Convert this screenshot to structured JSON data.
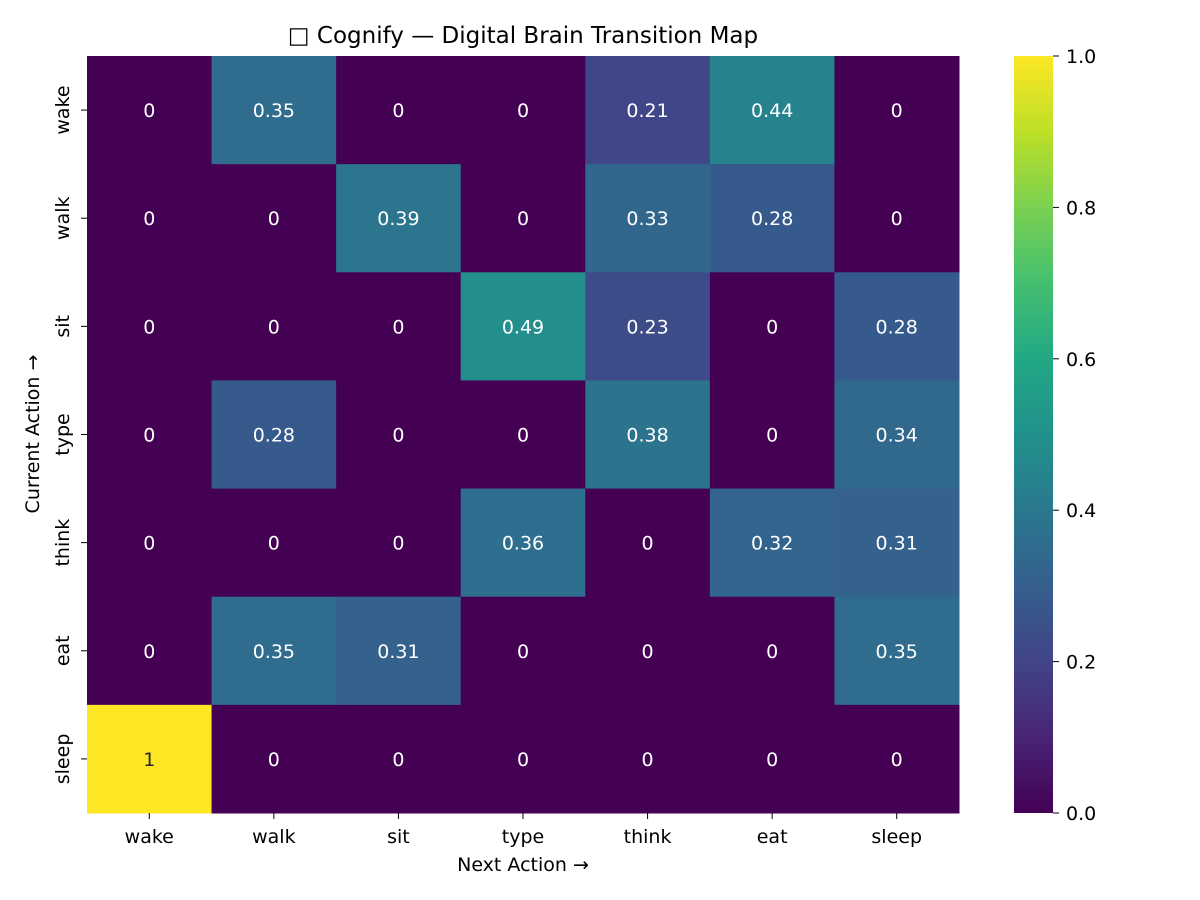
{
  "chart_data": {
    "type": "heatmap",
    "title": "□ Cognify — Digital Brain Transition Map",
    "xlabel": "Next Action →",
    "ylabel": "Current Action →",
    "x_categories": [
      "wake",
      "walk",
      "sit",
      "type",
      "think",
      "eat",
      "sleep"
    ],
    "y_categories": [
      "wake",
      "walk",
      "sit",
      "type",
      "think",
      "eat",
      "sleep"
    ],
    "values": [
      [
        0,
        0.35,
        0,
        0,
        0.21,
        0.44,
        0
      ],
      [
        0,
        0,
        0.39,
        0,
        0.33,
        0.28,
        0
      ],
      [
        0,
        0,
        0,
        0.49,
        0.23,
        0,
        0.28
      ],
      [
        0,
        0.28,
        0,
        0,
        0.38,
        0,
        0.34
      ],
      [
        0,
        0,
        0,
        0.36,
        0,
        0.32,
        0.31
      ],
      [
        0,
        0.35,
        0.31,
        0,
        0,
        0,
        0.35
      ],
      [
        1,
        0,
        0,
        0,
        0,
        0,
        0
      ]
    ],
    "value_labels": [
      [
        "0",
        "0.35",
        "0",
        "0",
        "0.21",
        "0.44",
        "0"
      ],
      [
        "0",
        "0",
        "0.39",
        "0",
        "0.33",
        "0.28",
        "0"
      ],
      [
        "0",
        "0",
        "0",
        "0.49",
        "0.23",
        "0",
        "0.28"
      ],
      [
        "0",
        "0.28",
        "0",
        "0",
        "0.38",
        "0",
        "0.34"
      ],
      [
        "0",
        "0",
        "0",
        "0.36",
        "0",
        "0.32",
        "0.31"
      ],
      [
        "0",
        "0.35",
        "0.31",
        "0",
        "0",
        "0",
        "0.35"
      ],
      [
        "1",
        "0",
        "0",
        "0",
        "0",
        "0",
        "0"
      ]
    ],
    "colormap": "viridis",
    "colorbar": {
      "range": [
        0.0,
        1.0
      ],
      "ticks": [
        0.0,
        0.2,
        0.4,
        0.6,
        0.8,
        1.0
      ],
      "tick_labels": [
        "0.0",
        "0.2",
        "0.4",
        "0.6",
        "0.8",
        "1.0"
      ]
    },
    "grid": false,
    "colors": {
      "annotation_dark_bg": "#ffffff",
      "annotation_light_bg": "#262626",
      "text": "#000000"
    }
  }
}
